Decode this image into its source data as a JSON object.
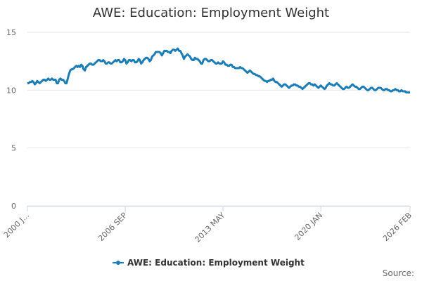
{
  "chart_data": {
    "type": "line",
    "title": "AWE: Education: Employment Weight",
    "source": "Source:",
    "categories": [
      "2000 J...",
      null,
      null,
      null,
      null,
      null,
      null,
      null,
      null,
      null,
      null,
      null,
      null,
      null,
      null,
      null,
      null,
      null,
      null,
      null,
      null,
      null,
      null,
      null,
      null,
      null,
      null,
      null,
      null,
      null,
      null,
      null,
      null,
      null,
      null,
      null,
      null,
      null,
      null,
      null,
      null,
      null,
      null,
      null,
      null,
      null,
      null,
      null,
      null,
      null,
      null,
      null,
      null,
      null,
      null,
      null,
      null,
      null,
      null,
      null,
      null,
      null,
      null,
      null,
      null,
      null,
      null,
      null,
      null,
      null,
      null,
      null,
      null,
      null,
      null,
      null,
      null,
      null,
      null,
      null,
      "2006 SEP",
      null,
      null,
      null,
      null,
      null,
      null,
      null,
      null,
      null,
      null,
      null,
      null,
      null,
      null,
      null,
      null,
      null,
      null,
      null,
      null,
      null,
      null,
      null,
      null,
      null,
      null,
      null,
      null,
      null,
      null,
      null,
      null,
      null,
      null,
      null,
      null,
      null,
      null,
      null,
      null,
      null,
      null,
      null,
      null,
      null,
      null,
      null,
      null,
      null,
      null,
      null,
      null,
      null,
      null,
      null,
      null,
      null,
      null,
      null,
      null,
      null,
      null,
      null,
      null,
      null,
      null,
      null,
      null,
      null,
      null,
      null,
      null,
      null,
      null,
      null,
      null,
      null,
      null,
      null,
      "2013 MAY",
      null,
      null,
      null,
      null,
      null,
      null,
      null,
      null,
      null,
      null,
      null,
      null,
      null,
      null,
      null,
      null,
      null,
      null,
      null,
      null,
      null,
      null,
      null,
      null,
      null,
      null,
      null,
      null,
      null,
      null,
      null,
      null,
      null,
      null,
      null,
      null,
      null,
      null,
      null,
      null,
      null,
      null,
      null,
      null,
      null,
      null,
      null,
      null,
      null,
      null,
      null,
      null,
      null,
      null,
      null,
      null,
      null,
      null,
      null,
      null,
      null,
      null,
      null,
      null,
      null,
      null,
      null,
      null,
      null,
      null,
      null,
      null,
      null,
      null,
      null,
      null,
      null,
      null,
      null,
      "2020 JAN",
      null,
      null,
      null,
      null,
      null,
      null,
      null,
      null,
      null,
      null,
      null,
      null,
      null,
      null,
      null,
      null,
      null,
      null,
      null,
      null,
      null,
      null,
      null,
      null,
      null,
      null,
      null,
      null,
      null,
      null,
      null,
      null,
      null,
      null,
      null,
      null,
      null,
      null,
      null,
      null,
      null,
      null,
      null,
      null,
      null,
      null,
      null,
      null,
      null,
      null,
      null,
      null,
      null,
      null,
      null,
      null,
      null,
      null,
      null,
      null,
      null,
      null,
      null,
      null,
      null,
      null,
      null,
      null,
      null,
      null,
      null,
      null,
      "2026 FEB"
    ],
    "series": [
      {
        "name": "AWE: Education: Employment Weight",
        "color": "#1b7db8",
        "values": [
          10.6,
          10.6,
          10.7,
          10.7,
          10.8,
          10.7,
          10.5,
          10.6,
          10.8,
          10.7,
          10.6,
          10.7,
          10.8,
          10.9,
          10.9,
          10.8,
          10.9,
          11.0,
          10.9,
          10.9,
          11.0,
          10.9,
          10.9,
          10.9,
          10.6,
          10.6,
          10.9,
          11.0,
          10.9,
          10.9,
          10.8,
          10.6,
          10.6,
          11.0,
          11.4,
          11.7,
          11.8,
          11.8,
          11.9,
          12.0,
          12.1,
          12.0,
          12.1,
          12.0,
          12.2,
          12.1,
          11.8,
          11.7,
          12.0,
          12.1,
          12.2,
          12.3,
          12.3,
          12.2,
          12.2,
          12.3,
          12.4,
          12.5,
          12.6,
          12.6,
          12.5,
          12.5,
          12.6,
          12.5,
          12.3,
          12.3,
          12.4,
          12.4,
          12.3,
          12.3,
          12.4,
          12.5,
          12.6,
          12.5,
          12.6,
          12.6,
          12.4,
          12.4,
          12.5,
          12.7,
          12.6,
          12.3,
          12.4,
          12.6,
          12.6,
          12.5,
          12.6,
          12.6,
          12.4,
          12.4,
          12.5,
          12.7,
          12.6,
          12.3,
          12.4,
          12.6,
          12.7,
          12.8,
          12.8,
          12.7,
          12.5,
          12.6,
          12.9,
          13.0,
          13.1,
          13.3,
          13.3,
          13.3,
          13.3,
          13.2,
          13.0,
          13.2,
          13.4,
          13.4,
          13.4,
          13.3,
          13.3,
          13.2,
          13.4,
          13.5,
          13.5,
          13.4,
          13.5,
          13.6,
          13.4,
          13.4,
          13.2,
          13.0,
          12.7,
          12.9,
          13.0,
          13.1,
          13.0,
          12.9,
          12.7,
          12.6,
          12.6,
          12.8,
          12.7,
          12.7,
          12.6,
          12.5,
          12.3,
          12.3,
          12.6,
          12.7,
          12.7,
          12.6,
          12.5,
          12.5,
          12.6,
          12.6,
          12.5,
          12.4,
          12.3,
          12.3,
          12.4,
          12.3,
          12.3,
          12.3,
          12.5,
          12.4,
          12.2,
          12.2,
          12.1,
          12.1,
          12.2,
          12.2,
          12.0,
          12.0,
          11.9,
          11.9,
          11.9,
          11.9,
          12.0,
          11.9,
          11.9,
          11.8,
          11.7,
          11.6,
          11.5,
          11.6,
          11.7,
          11.6,
          11.5,
          11.4,
          11.4,
          11.3,
          11.3,
          11.2,
          11.2,
          11.1,
          11.0,
          10.9,
          10.8,
          10.8,
          10.7,
          10.8,
          10.8,
          10.9,
          10.9,
          11.0,
          10.8,
          10.7,
          10.7,
          10.6,
          10.5,
          10.4,
          10.3,
          10.4,
          10.5,
          10.5,
          10.4,
          10.3,
          10.2,
          10.3,
          10.4,
          10.4,
          10.5,
          10.5,
          10.4,
          10.4,
          10.3,
          10.3,
          10.2,
          10.1,
          10.2,
          10.3,
          10.4,
          10.5,
          10.6,
          10.6,
          10.5,
          10.5,
          10.4,
          10.5,
          10.4,
          10.3,
          10.2,
          10.3,
          10.4,
          10.3,
          10.2,
          10.1,
          10.2,
          10.4,
          10.5,
          10.6,
          10.5,
          10.5,
          10.4,
          10.4,
          10.5,
          10.6,
          10.5,
          10.4,
          10.3,
          10.2,
          10.1,
          10.1,
          10.2,
          10.3,
          10.2,
          10.2,
          10.3,
          10.4,
          10.5,
          10.4,
          10.3,
          10.3,
          10.2,
          10.1,
          10.1,
          10.2,
          10.3,
          10.3,
          10.2,
          10.1,
          10.0,
          10.0,
          10.1,
          10.2,
          10.2,
          10.1,
          10.0,
          10.0,
          10.1,
          10.2,
          10.2,
          10.2,
          10.1,
          10.0,
          10.0,
          10.1,
          10.1,
          10.0,
          10.0,
          9.9,
          9.9,
          10.0,
          10.0,
          10.1,
          10.0,
          10.0,
          9.9,
          9.9,
          10.0,
          9.9,
          9.9,
          9.9,
          9.8,
          9.8,
          9.8,
          9.8
        ]
      }
    ],
    "ylim": [
      0,
      15
    ],
    "yticks": [
      0,
      5,
      10,
      15
    ],
    "grid": true
  }
}
